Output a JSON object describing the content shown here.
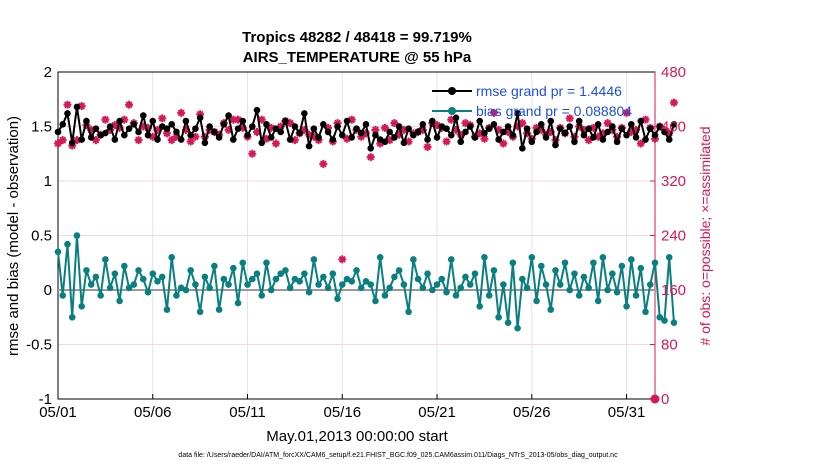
{
  "chart_data": {
    "type": "line",
    "title_line1": "Tropics 48282 / 48418 = 99.719%",
    "title_line2": "AIRS_TEMPERATURE @ 55 hPa",
    "xlabel": "May.01,2013 00:00:00 start",
    "ylabel_left": "rmse and bias (model - observation)",
    "ylabel_right": "# of obs: o=possible; ×=assimilated",
    "footnote": "data file: /Users/raeder/DAI/ATM_forcXX/CAM6_setup/f.e21.FHIST_BGC.f09_025.CAM6assim.011/Diags_NTrS_2013-05/obs_diag_output.nc",
    "xlim": [
      1,
      32.5
    ],
    "ylim": [
      -1,
      2
    ],
    "ylim_right": [
      0,
      480
    ],
    "x_ticks": [
      {
        "value": 1,
        "label": "05/01"
      },
      {
        "value": 6,
        "label": "05/06"
      },
      {
        "value": 11,
        "label": "05/11"
      },
      {
        "value": 16,
        "label": "05/16"
      },
      {
        "value": 21,
        "label": "05/21"
      },
      {
        "value": 26,
        "label": "05/26"
      },
      {
        "value": 31,
        "label": "05/31"
      }
    ],
    "y_ticks": [
      {
        "value": -1,
        "label": "-1"
      },
      {
        "value": -0.5,
        "label": "-0.5"
      },
      {
        "value": 0,
        "label": "0"
      },
      {
        "value": 0.5,
        "label": "0.5"
      },
      {
        "value": 1,
        "label": "1"
      },
      {
        "value": 1.5,
        "label": "1.5"
      },
      {
        "value": 2,
        "label": "2"
      }
    ],
    "y_ticks_right": [
      {
        "value": 0,
        "label": "0"
      },
      {
        "value": 80,
        "label": "80"
      },
      {
        "value": 160,
        "label": "160"
      },
      {
        "value": 240,
        "label": "240"
      },
      {
        "value": 320,
        "label": "320"
      },
      {
        "value": 400,
        "label": "400"
      },
      {
        "value": 480,
        "label": "480"
      }
    ],
    "grid": true,
    "legend_position": "top-right",
    "x_start": 1,
    "x_step": 0.25,
    "series": [
      {
        "name": "rmse grand pr = 1.4446",
        "color": "#000000",
        "axis": "left",
        "values": [
          1.45,
          1.52,
          1.62,
          1.35,
          1.68,
          1.38,
          1.55,
          1.4,
          1.48,
          1.42,
          1.44,
          1.5,
          1.38,
          1.55,
          1.42,
          1.48,
          1.52,
          1.45,
          1.6,
          1.42,
          1.55,
          1.38,
          1.5,
          1.48,
          1.52,
          1.45,
          1.38,
          1.55,
          1.42,
          1.48,
          1.58,
          1.35,
          1.5,
          1.45,
          1.4,
          1.52,
          1.6,
          1.38,
          1.48,
          1.55,
          1.42,
          1.5,
          1.65,
          1.35,
          1.52,
          1.4,
          1.48,
          1.45,
          1.55,
          1.38,
          1.5,
          1.44,
          1.62,
          1.32,
          1.48,
          1.4,
          1.52,
          1.45,
          1.38,
          1.5,
          1.42,
          1.55,
          1.4,
          1.48,
          1.44,
          1.52,
          1.3,
          1.42,
          1.38,
          1.36,
          1.45,
          1.4,
          1.5,
          1.35,
          1.48,
          1.42,
          1.45,
          1.52,
          1.38,
          1.55,
          1.4,
          1.5,
          1.48,
          1.42,
          1.58,
          1.36,
          1.45,
          1.5,
          1.4,
          1.55,
          1.44,
          1.48,
          1.52,
          1.38,
          1.45,
          1.5,
          1.42,
          1.62,
          1.3,
          1.48,
          1.36,
          1.45,
          1.52,
          1.4,
          1.55,
          1.33,
          1.48,
          1.44,
          1.5,
          1.36,
          1.55,
          1.42,
          1.48,
          1.4,
          1.52,
          1.38,
          1.45,
          1.5,
          1.36,
          1.48,
          1.42,
          1.52,
          1.4,
          1.55,
          1.38,
          1.48,
          1.42,
          1.5,
          1.45,
          1.38,
          1.52
        ]
      },
      {
        "name": "bias grand pr = 0.088804",
        "color": "#0a7f7f",
        "axis": "left",
        "values": [
          0.35,
          -0.05,
          0.42,
          -0.25,
          0.5,
          -0.15,
          0.18,
          0.05,
          0.12,
          -0.05,
          0.28,
          0.02,
          0.15,
          -0.1,
          0.22,
          0.02,
          0.05,
          0.18,
          0.1,
          -0.02,
          0.15,
          0.08,
          0.12,
          -0.18,
          0.3,
          -0.05,
          0.02,
          0.0,
          0.18,
          0.05,
          -0.2,
          0.12,
          0.02,
          0.22,
          -0.18,
          0.1,
          0.05,
          0.2,
          -0.12,
          0.25,
          0.05,
          0.1,
          0.15,
          -0.05,
          0.25,
          0.0,
          0.1,
          0.15,
          0.18,
          0.02,
          0.1,
          0.08,
          0.15,
          -0.02,
          0.28,
          0.05,
          0.12,
          0.02,
          0.15,
          -0.08,
          0.05,
          0.1,
          0.08,
          0.18,
          0.02,
          0.08,
          0.05,
          -0.1,
          0.3,
          -0.05,
          0.02,
          0.12,
          0.18,
          0.05,
          -0.2,
          0.28,
          0.1,
          0.02,
          0.15,
          0.0,
          0.05,
          0.1,
          -0.02,
          0.28,
          -0.05,
          0.02,
          0.12,
          0.05,
          0.15,
          -0.15,
          0.3,
          -0.05,
          0.18,
          -0.25,
          0.05,
          -0.3,
          0.25,
          -0.35,
          0.1,
          0.02,
          0.3,
          -0.1,
          0.22,
          0.05,
          -0.18,
          0.18,
          0.05,
          0.25,
          0.0,
          0.15,
          -0.05,
          0.12,
          0.02,
          0.25,
          -0.1,
          0.3,
          0.0,
          0.15,
          -0.02,
          0.22,
          -0.15,
          0.28,
          -0.05,
          0.2,
          -0.2,
          0.05,
          0.25,
          -0.25,
          -0.28,
          0.3,
          -0.3
        ]
      },
      {
        "name": "possible",
        "color": "#d6185a",
        "axis": "right",
        "marker": "o",
        "values": [
          375,
          380,
          432,
          372,
          380,
          430,
          402,
          395,
          380,
          388,
          410,
          395,
          402,
          398,
          410,
          432,
          405,
          380,
          400,
          398,
          385,
          395,
          412,
          390,
          380,
          385,
          420,
          395,
          378,
          385,
          418,
          385,
          395,
          392,
          388,
          405,
          395,
          410,
          410,
          398,
          385,
          360,
          392,
          410,
          382,
          398,
          375,
          400,
          408,
          405,
          380,
          390,
          395,
          388,
          385,
          380,
          345,
          398,
          378,
          405,
          205,
          382,
          410,
          395,
          385,
          390,
          355,
          395,
          375,
          398,
          380,
          405,
          388,
          395,
          378,
          390,
          392,
          395,
          370,
          405,
          402,
          398,
          378,
          410,
          395,
          388,
          405,
          402,
          385,
          390,
          382,
          398,
          420,
          395,
          375,
          392,
          385,
          400,
          405,
          390,
          382,
          398,
          395,
          388,
          392,
          380,
          398,
          390,
          412,
          385,
          400,
          395,
          380,
          398,
          385,
          390,
          405,
          395,
          385,
          398,
          420,
          392,
          395,
          375,
          410,
          398,
          382,
          400,
          395,
          390,
          435
        ]
      }
    ]
  }
}
